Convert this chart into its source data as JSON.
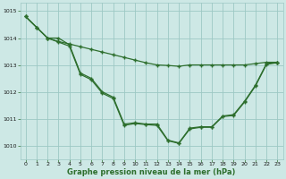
{
  "background_color": "#cde8e5",
  "grid_color": "#9dc8c4",
  "line_color": "#2d6e2d",
  "xlabel": "Graphe pression niveau de la mer (hPa)",
  "xlim": [
    -0.5,
    23.5
  ],
  "ylim": [
    1009.5,
    1015.3
  ],
  "yticks": [
    1010,
    1011,
    1012,
    1013,
    1014,
    1015
  ],
  "xticks": [
    0,
    1,
    2,
    3,
    4,
    5,
    6,
    7,
    8,
    9,
    10,
    11,
    12,
    13,
    14,
    15,
    16,
    17,
    18,
    19,
    20,
    21,
    22,
    23
  ],
  "s1": [
    1014.8,
    1014.4,
    1014.0,
    1013.87,
    1013.78,
    1013.68,
    1013.58,
    1013.48,
    1013.38,
    1013.28,
    1013.18,
    1013.08,
    1013.0,
    1012.98,
    1012.95,
    1013.0,
    1013.0,
    1013.0,
    1013.0,
    1013.0,
    1013.0,
    1013.05,
    1013.1,
    1013.1
  ],
  "s2": [
    1014.8,
    1014.4,
    1014.0,
    1014.0,
    1013.75,
    1012.7,
    1012.5,
    1012.0,
    1011.8,
    1010.8,
    1010.85,
    1010.8,
    1010.8,
    1010.2,
    1010.1,
    1010.65,
    1010.7,
    1010.7,
    1011.1,
    1011.15,
    1011.65,
    1012.25,
    1013.05,
    1013.1
  ],
  "s3": [
    1014.8,
    1014.4,
    1014.0,
    1013.85,
    1013.7,
    1012.65,
    1012.45,
    1011.95,
    1011.75,
    1010.75,
    1010.82,
    1010.78,
    1010.75,
    1010.18,
    1010.08,
    1010.62,
    1010.68,
    1010.68,
    1011.08,
    1011.12,
    1011.62,
    1012.22,
    1013.02,
    1013.08
  ]
}
